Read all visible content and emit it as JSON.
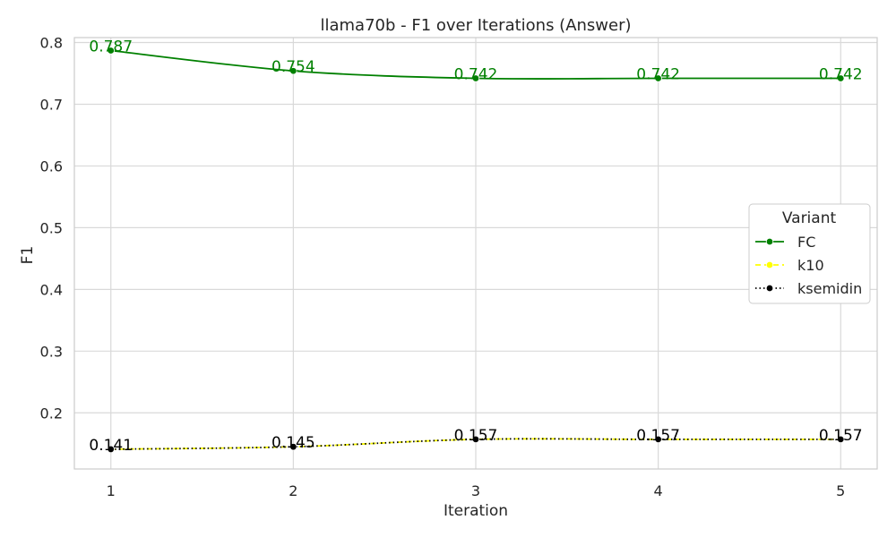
{
  "chart_data": {
    "type": "line",
    "title": "llama70b - F1 over Iterations (Answer)",
    "xlabel": "Iteration",
    "ylabel": "F1",
    "x": [
      1,
      2,
      3,
      4,
      5
    ],
    "x_tick_labels": [
      "1",
      "2",
      "3",
      "4",
      "5"
    ],
    "xlim": [
      0.8,
      5.2
    ],
    "ylim": [
      0.109,
      0.808
    ],
    "y_ticks": [
      0.2,
      0.3,
      0.4,
      0.5,
      0.6,
      0.7,
      0.8
    ],
    "y_tick_labels": [
      "0.2",
      "0.3",
      "0.4",
      "0.5",
      "0.6",
      "0.7",
      "0.8"
    ],
    "grid": true,
    "legend": {
      "title": "Variant",
      "placement": "center-right"
    },
    "series": [
      {
        "name": "FC",
        "values": [
          0.787,
          0.754,
          0.742,
          0.742,
          0.742
        ],
        "labels": [
          "0.787",
          "0.754",
          "0.742",
          "0.742",
          "0.742"
        ],
        "color": "#008000",
        "dash": "solid",
        "marker_color": "#008000"
      },
      {
        "name": "k10",
        "values": [
          0.141,
          0.145,
          0.157,
          0.157,
          0.157
        ],
        "labels": [],
        "color": "#ffff00",
        "dash": "dashed",
        "marker_color": "#ffff00"
      },
      {
        "name": "ksemidin",
        "values": [
          0.141,
          0.145,
          0.157,
          0.157,
          0.157
        ],
        "labels": [
          "0.141",
          "0.145",
          "0.157",
          "0.157",
          "0.157"
        ],
        "color": "#000000",
        "dash": "dotted",
        "marker_color": "#000000"
      }
    ]
  }
}
